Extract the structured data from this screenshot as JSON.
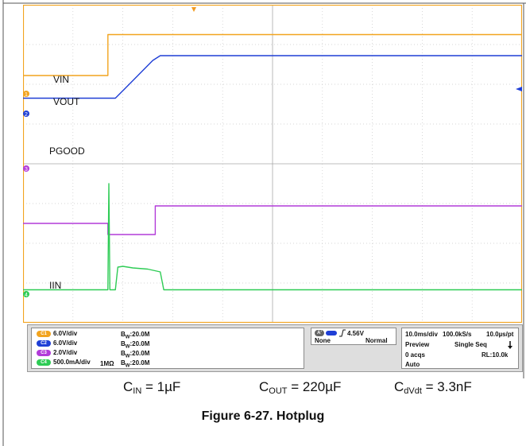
{
  "chart_data": {
    "type": "line",
    "grid": true,
    "x_divisions": 10,
    "y_divisions": 8,
    "labels": {
      "vin": "VIN",
      "vout": "VOUT",
      "pgood": "PGOOD",
      "iin": "IIN"
    },
    "markers": [
      "1",
      "2",
      "3",
      "4"
    ],
    "series": [
      {
        "key": "vin",
        "color": "#f2a41f",
        "points": [
          [
            0,
            2.22
          ],
          [
            1.7,
            2.22
          ],
          [
            1.7,
            3.25
          ],
          [
            10,
            3.25
          ]
        ]
      },
      {
        "key": "vout",
        "color": "#1f3fd6",
        "points": [
          [
            0,
            1.65
          ],
          [
            1.85,
            1.65
          ],
          [
            2.05,
            1.9
          ],
          [
            2.6,
            2.6
          ],
          [
            2.75,
            2.72
          ],
          [
            10,
            2.72
          ]
        ]
      },
      {
        "key": "pgood",
        "color": "#b23bd9",
        "points": [
          [
            0,
            0.3
          ],
          [
            1.7,
            0.3
          ],
          [
            1.7,
            0.02
          ],
          [
            2.65,
            0.02
          ],
          [
            2.65,
            0.74
          ],
          [
            10,
            0.74
          ]
        ]
      },
      {
        "key": "iin",
        "color": "#2ecc55",
        "points": [
          [
            0,
            0.03
          ],
          [
            1.7,
            0.03
          ],
          [
            1.72,
            2.7
          ],
          [
            1.74,
            0.03
          ],
          [
            1.85,
            0.03
          ],
          [
            1.9,
            0.6
          ],
          [
            2.0,
            0.62
          ],
          [
            2.2,
            0.58
          ],
          [
            2.5,
            0.55
          ],
          [
            2.75,
            0.48
          ],
          [
            2.82,
            0.03
          ],
          [
            10,
            0.03
          ]
        ]
      }
    ]
  },
  "channels": [
    {
      "badge": "C1",
      "color": "#f2a41f",
      "scale": "6.0V/div",
      "coupling": "",
      "bw": "B",
      "bw_sub": "W",
      "bw_val": ":20.0M"
    },
    {
      "badge": "C2",
      "color": "#1f3fd6",
      "scale": "6.0V/div",
      "coupling": "",
      "bw": "B",
      "bw_sub": "W",
      "bw_val": ":20.0M"
    },
    {
      "badge": "C3",
      "color": "#b23bd9",
      "scale": "2.0V/div",
      "coupling": "",
      "bw": "B",
      "bw_sub": "W",
      "bw_val": ":20.0M"
    },
    {
      "badge": "C4",
      "color": "#2ecc55",
      "scale": "500.0mA/div",
      "coupling": "1MΩ",
      "bw": "B",
      "bw_sub": "W",
      "bw_val": ":20.0M"
    }
  ],
  "trigger": {
    "badge": "A'",
    "level": "4.56V",
    "source": "None",
    "mode": "Normal"
  },
  "acquisition": {
    "timebase": "10.0ms/div",
    "sample_rate": "100.0kS/s",
    "resolution": "10.0µs/pt",
    "state": "Preview",
    "seq": "Single Seq",
    "acqs": "0 acqs",
    "record": "RL:10.0k",
    "mode": "Auto"
  },
  "conditions": {
    "cin_main": "C",
    "cin_sub": "IN",
    "cin_val": " = 1µF",
    "cout_main": "C",
    "cout_sub": "OUT",
    "cout_val": " = 220µF",
    "cdvdt_main": "C",
    "cdvdt_sub": "dVdt",
    "cdvdt_val": " = 3.3nF"
  },
  "caption": "Figure 6-27. Hotplug"
}
